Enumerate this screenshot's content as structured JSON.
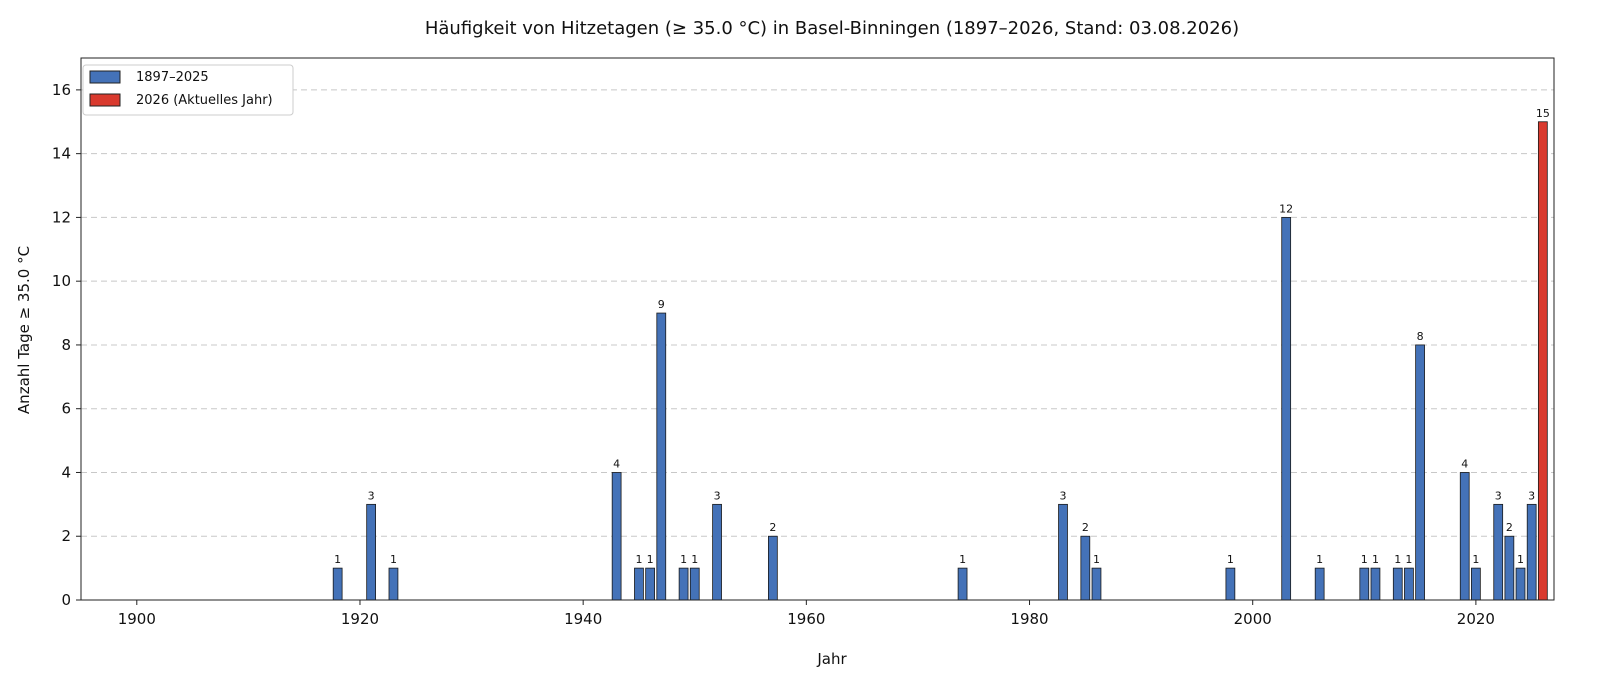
{
  "chart_data": {
    "type": "bar",
    "title": "Häufigkeit von Hitzetagen (≥ 35.0 °C) in Basel-Binningen (1897–2026, Stand: 03.08.2026)",
    "xlabel": "Jahr",
    "ylabel": "Anzahl Tage ≥ 35.0 °C",
    "xlim": [
      1895,
      2027
    ],
    "ylim": [
      0,
      17
    ],
    "x_ticks": [
      1900,
      1920,
      1940,
      1960,
      1980,
      2000,
      2020
    ],
    "y_ticks": [
      0,
      2,
      4,
      6,
      8,
      10,
      12,
      14,
      16
    ],
    "grid": "y",
    "legend_position": "top-left",
    "series": [
      {
        "name": "1897–2025",
        "color": "#4472b8",
        "points": [
          {
            "x": 1918,
            "y": 1
          },
          {
            "x": 1921,
            "y": 3
          },
          {
            "x": 1923,
            "y": 1
          },
          {
            "x": 1943,
            "y": 4
          },
          {
            "x": 1945,
            "y": 1
          },
          {
            "x": 1946,
            "y": 1
          },
          {
            "x": 1947,
            "y": 9
          },
          {
            "x": 1949,
            "y": 1
          },
          {
            "x": 1950,
            "y": 1
          },
          {
            "x": 1952,
            "y": 3
          },
          {
            "x": 1957,
            "y": 2
          },
          {
            "x": 1974,
            "y": 1
          },
          {
            "x": 1983,
            "y": 3
          },
          {
            "x": 1985,
            "y": 2
          },
          {
            "x": 1986,
            "y": 1
          },
          {
            "x": 1998,
            "y": 1
          },
          {
            "x": 2003,
            "y": 12
          },
          {
            "x": 2006,
            "y": 1
          },
          {
            "x": 2010,
            "y": 1
          },
          {
            "x": 2011,
            "y": 1
          },
          {
            "x": 2013,
            "y": 1
          },
          {
            "x": 2014,
            "y": 1
          },
          {
            "x": 2015,
            "y": 8
          },
          {
            "x": 2019,
            "y": 4
          },
          {
            "x": 2020,
            "y": 1
          },
          {
            "x": 2022,
            "y": 3
          },
          {
            "x": 2023,
            "y": 2
          },
          {
            "x": 2024,
            "y": 1
          },
          {
            "x": 2025,
            "y": 3
          }
        ]
      },
      {
        "name": "2026 (Aktuelles Jahr)",
        "color": "#d93a2e",
        "points": [
          {
            "x": 2026,
            "y": 15
          }
        ]
      }
    ]
  }
}
